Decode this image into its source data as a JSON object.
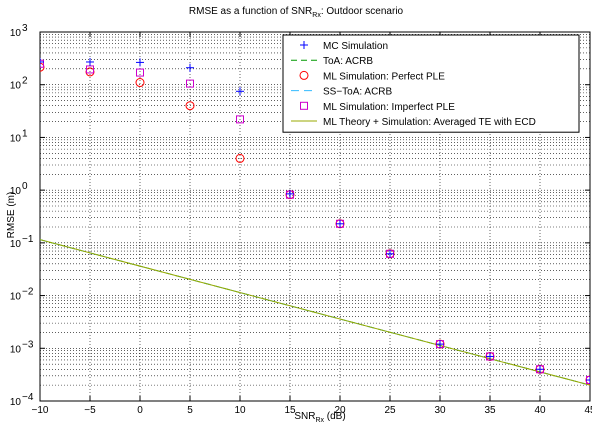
{
  "chart_data": {
    "type": "scatter",
    "title_main": "RMSE as a function of SNR",
    "title_sub": "Rx",
    "title_tail": ": Outdoor scenario",
    "xlabel_main": "SNR",
    "xlabel_sub": "Rx",
    "xlabel_tail": " (dB)",
    "ylabel": "RMSE (m)",
    "xlim": [
      -10,
      45
    ],
    "ylim": [
      0.0001,
      1000
    ],
    "yscale": "log",
    "grid": true,
    "legend_position": "top-right",
    "x_ticks": [
      -10,
      -5,
      0,
      5,
      10,
      15,
      20,
      25,
      30,
      35,
      40,
      45
    ],
    "x_tick_labels": [
      "−10",
      "−5",
      "0",
      "5",
      "10",
      "15",
      "20",
      "25",
      "30",
      "35",
      "40",
      "45"
    ],
    "y_tick_exponents": [
      -4,
      -3,
      -2,
      -1,
      0,
      1,
      2,
      3
    ],
    "y_tick_base": "10",
    "y_tick_exponent_labels": [
      "−4",
      "−3",
      "−2",
      "−1",
      "0",
      "1",
      "2",
      "3"
    ],
    "series": [
      {
        "name": "MC Simulation",
        "style": "marker",
        "marker": "plus",
        "color": "#0000ff",
        "x": [
          -10,
          -5,
          0,
          5,
          10,
          15,
          20,
          25,
          30,
          35,
          40,
          45
        ],
        "y": [
          270,
          270,
          265,
          210,
          75,
          0.85,
          0.23,
          0.062,
          0.0012,
          0.0007,
          0.0004,
          0.00025
        ]
      },
      {
        "name": "ToA: ACRB",
        "style": "line",
        "dash": "6,4",
        "color": "#009900",
        "x": [
          -10,
          45
        ],
        "y": [
          0.115,
          0.0002
        ]
      },
      {
        "name": "ML Simulation: Perfect PLE",
        "style": "marker",
        "marker": "circle",
        "color": "#ff0000",
        "x": [
          -10,
          -5,
          0,
          5,
          10,
          15,
          20,
          25,
          30,
          35,
          40,
          45
        ],
        "y": [
          215,
          175,
          110,
          40,
          4,
          0.82,
          0.23,
          0.062,
          0.0012,
          0.0007,
          0.0004,
          0.00025
        ]
      },
      {
        "name": "SS−ToA: ACRB",
        "style": "line",
        "dash": "8,5",
        "color": "#33bbff",
        "x": [
          -10,
          45
        ],
        "y": [
          0.115,
          0.0002
        ]
      },
      {
        "name": "ML Simulation: Imperfect PLE",
        "style": "marker",
        "marker": "square",
        "color": "#cc00cc",
        "x": [
          -10,
          -5,
          0,
          5,
          10,
          15,
          20,
          25,
          30,
          35,
          40,
          45
        ],
        "y": [
          250,
          195,
          170,
          105,
          22,
          0.82,
          0.23,
          0.062,
          0.0012,
          0.0007,
          0.0004,
          0.00025
        ]
      },
      {
        "name": "ML Theory + Simulation: Averaged TE with ECD",
        "style": "line",
        "dash": "",
        "color": "#99aa00",
        "x": [
          -10,
          45
        ],
        "y": [
          0.115,
          0.0002
        ]
      }
    ]
  }
}
